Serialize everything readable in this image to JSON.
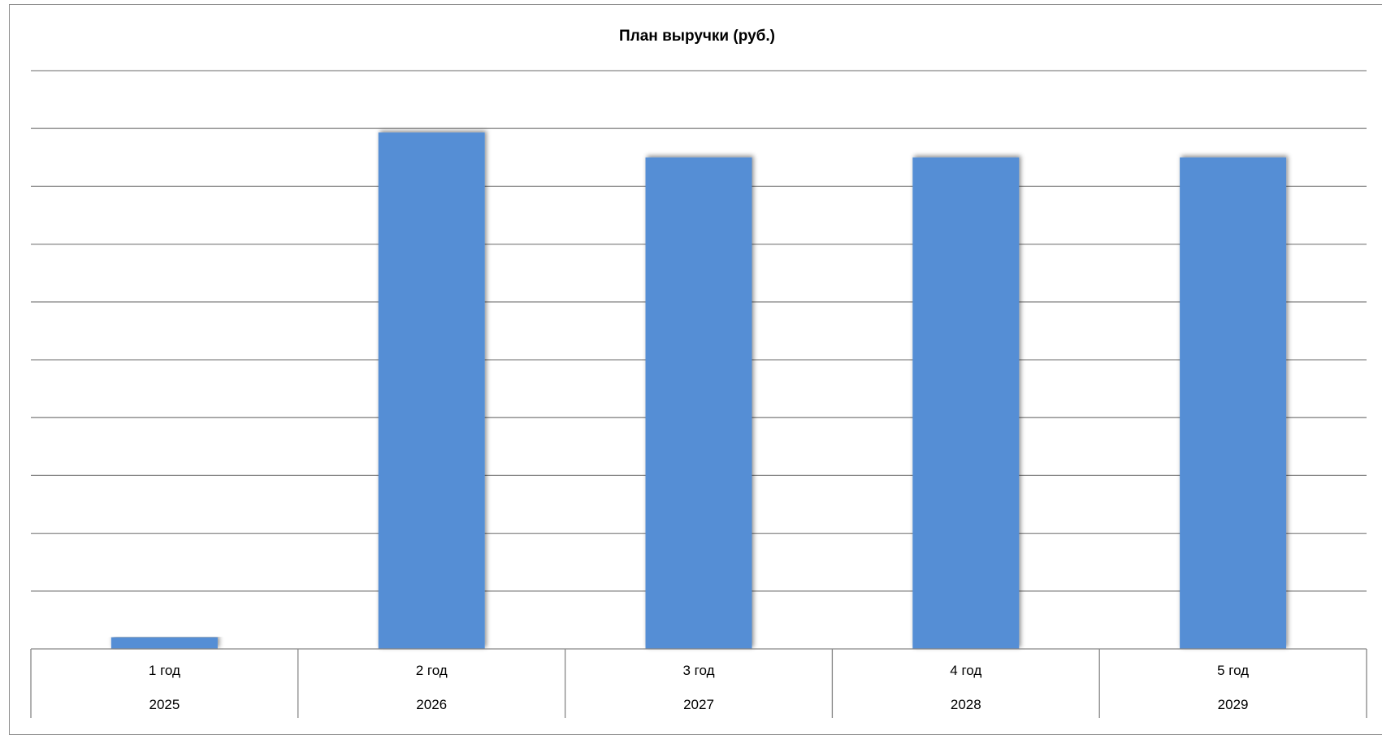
{
  "chart_data": {
    "type": "bar",
    "title": "План выручки (руб.)",
    "xlabel": "",
    "ylabel": "",
    "categories": [
      "1 год",
      "2 год",
      "3 год",
      "4 год",
      "5 год"
    ],
    "categories_secondary": [
      "2025",
      "2026",
      "2027",
      "2028",
      "2029"
    ],
    "values": [
      2,
      89.3,
      85,
      85,
      85
    ],
    "ylim": [
      0,
      100
    ],
    "grid": true,
    "bar_color": "#558ed5",
    "gridline_color": "#868686"
  }
}
